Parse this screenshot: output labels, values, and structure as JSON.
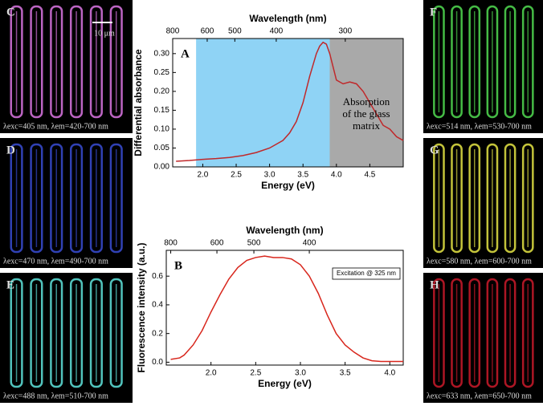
{
  "chart_data": [
    {
      "type": "line",
      "panel_label": "A",
      "xlabel": "Energy (eV)",
      "ylabel": "Differential absorbance",
      "x2label": "Wavelength (nm)",
      "annotation": [
        "Absorption",
        "of the glass",
        "matrix"
      ],
      "x": [
        1.6,
        1.8,
        2.0,
        2.2,
        2.4,
        2.6,
        2.8,
        3.0,
        3.2,
        3.3,
        3.4,
        3.5,
        3.6,
        3.7,
        3.75,
        3.8,
        3.85,
        3.9,
        4.0,
        4.1,
        4.2,
        4.3,
        4.4,
        4.5,
        4.6,
        4.7,
        4.8,
        4.9,
        5.0
      ],
      "values": [
        0.015,
        0.017,
        0.02,
        0.022,
        0.025,
        0.03,
        0.038,
        0.05,
        0.07,
        0.09,
        0.12,
        0.17,
        0.24,
        0.3,
        0.32,
        0.33,
        0.325,
        0.3,
        0.23,
        0.22,
        0.225,
        0.22,
        0.2,
        0.17,
        0.14,
        0.11,
        0.1,
        0.08,
        0.07
      ],
      "color": "#c0282a",
      "regions": [
        {
          "xlim": [
            1.9,
            3.9
          ],
          "color": "#8fd3f5"
        },
        {
          "xlim": [
            3.9,
            5.0
          ],
          "color": "#a9a9a9"
        }
      ],
      "xlim": [
        1.55,
        5.0
      ],
      "ylim": [
        0,
        0.34
      ],
      "xticks": [
        {
          "value": 2,
          "label": "2.0"
        },
        2.5,
        {
          "value": 3,
          "label": "3.0"
        },
        3.5,
        {
          "value": 4,
          "label": "4.0"
        },
        4.5
      ],
      "yticks": [
        {
          "value": 0,
          "label": "0.00"
        },
        0.05,
        {
          "value": 0.1,
          "label": "0.10"
        },
        0.15,
        {
          "value": 0.2,
          "label": "0.20"
        },
        0.25,
        {
          "value": 0.3,
          "label": "0.30"
        }
      ],
      "x2ticks": [
        800,
        600,
        500,
        400,
        300
      ]
    },
    {
      "type": "line",
      "panel_label": "B",
      "xlabel": "Energy (eV)",
      "ylabel": "Fluorescence intensity (a.u.)",
      "x2label": "Wavelength (nm)",
      "annotation": [
        "Excitation @ 325 nm"
      ],
      "x": [
        1.55,
        1.65,
        1.7,
        1.8,
        1.9,
        2.0,
        2.1,
        2.2,
        2.3,
        2.4,
        2.5,
        2.6,
        2.7,
        2.8,
        2.9,
        3.0,
        3.1,
        3.2,
        3.3,
        3.4,
        3.5,
        3.6,
        3.7,
        3.8,
        3.9,
        4.0,
        4.15
      ],
      "values": [
        0.02,
        0.03,
        0.05,
        0.12,
        0.22,
        0.35,
        0.47,
        0.58,
        0.66,
        0.71,
        0.73,
        0.74,
        0.73,
        0.73,
        0.72,
        0.68,
        0.6,
        0.48,
        0.33,
        0.2,
        0.12,
        0.07,
        0.03,
        0.01,
        0.005,
        0.005,
        0.005
      ],
      "color": "#d8261c",
      "regions": [],
      "xlim": [
        1.5,
        4.15
      ],
      "ylim": [
        -0.02,
        0.78
      ],
      "xticks": [
        {
          "value": 2,
          "label": "2.0"
        },
        2.5,
        {
          "value": 3,
          "label": "3.0"
        },
        3.5,
        {
          "value": 4,
          "label": "4.0"
        }
      ],
      "yticks": [
        {
          "value": 0,
          "label": "0.0"
        },
        0.2,
        0.4,
        0.6
      ],
      "x2ticks": [
        800,
        600,
        500,
        400
      ]
    }
  ],
  "panels": [
    {
      "label": "C",
      "scale_bar": "10 μm",
      "caption": "λexc=405 nm, λem=420-700 nm",
      "color": "#d070d8"
    },
    {
      "label": "D",
      "caption": "λexc=470 nm, λem=490-700 nm",
      "color": "#3548c8"
    },
    {
      "label": "E",
      "caption": "λexc=488 nm, λem=510-700 nm",
      "color": "#5ad8d0"
    },
    {
      "label": "F",
      "caption": "λexc=514 nm, λem=530-700 nm",
      "color": "#4ccf4c"
    },
    {
      "label": "G",
      "caption": "λexc=580 nm, λem=600-700 nm",
      "color": "#d8d840"
    },
    {
      "label": "H",
      "caption": "λexc=633 nm, λem=650-700 nm",
      "color": "#c01828"
    }
  ]
}
